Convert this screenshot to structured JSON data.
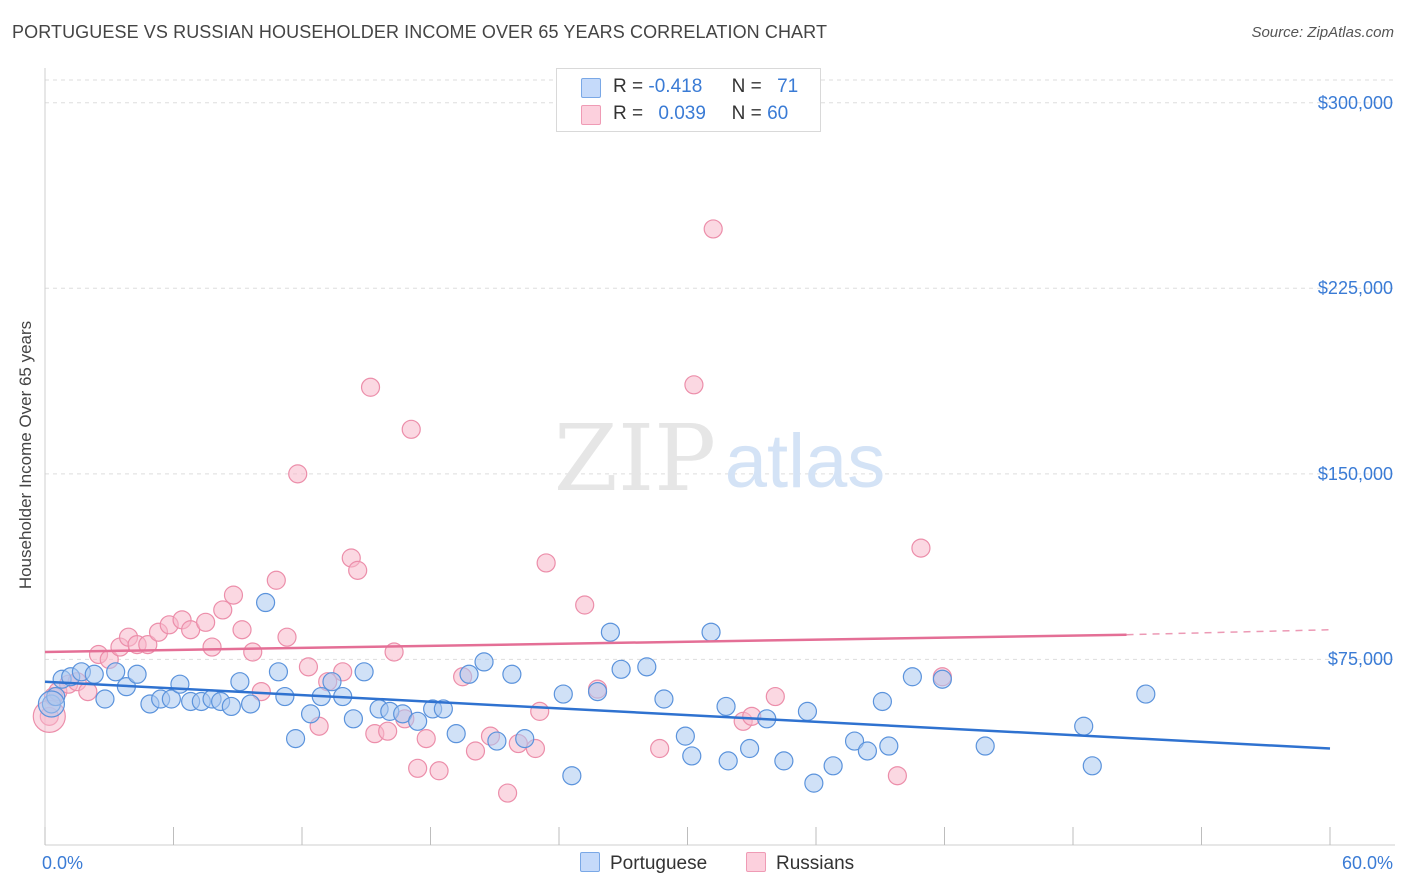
{
  "title": "PORTUGUESE VS RUSSIAN HOUSEHOLDER INCOME OVER 65 YEARS CORRELATION CHART",
  "source": "Source: ZipAtlas.com",
  "watermark": {
    "zip": "ZIP",
    "atlas": "atlas"
  },
  "legend": {
    "r_label": "R =",
    "n_label": "N =",
    "rows": [
      {
        "r": "-0.418",
        "n": "71",
        "color": "#a9c8f0"
      },
      {
        "r": "0.039",
        "n": "60",
        "color": "#f7b8cb"
      }
    ]
  },
  "bottom_legend": [
    "Portuguese",
    "Russians"
  ],
  "colors": {
    "portuguese_fill": "#a9c8f0",
    "portuguese_stroke": "#5b93dc",
    "portuguese_line": "#2f72d0",
    "russians_fill": "#f7b8cb",
    "russians_stroke": "#ec8eaa",
    "russians_line": "#e46f96",
    "tick_label": "#3a7bd5",
    "grid": "#dddddd"
  },
  "chart_data": {
    "type": "scatter",
    "title": "PORTUGUESE VS RUSSIAN HOUSEHOLDER INCOME OVER 65 YEARS CORRELATION CHART",
    "xlabel": "",
    "ylabel": "Householder Income Over 65 years",
    "xlim": [
      0,
      60
    ],
    "ylim": [
      0,
      310000
    ],
    "x_tick_labels": [
      "0.0%",
      "60.0%"
    ],
    "y_ticks": [
      75000,
      150000,
      225000,
      300000
    ],
    "y_tick_labels": [
      "$75,000",
      "$150,000",
      "$225,000",
      "$300,000"
    ],
    "grid": "horizontal dashed",
    "legend_placement": "top-center",
    "series": [
      {
        "name": "Portuguese",
        "R": -0.418,
        "N": 71,
        "trend": {
          "x": [
            0,
            60
          ],
          "y": [
            66000,
            39000
          ]
        },
        "points": [
          [
            0.3,
            57000
          ],
          [
            0.5,
            60000
          ],
          [
            0.8,
            67000
          ],
          [
            1.2,
            68000
          ],
          [
            1.7,
            70000
          ],
          [
            2.3,
            69000
          ],
          [
            2.8,
            59000
          ],
          [
            3.3,
            70000
          ],
          [
            3.8,
            64000
          ],
          [
            4.3,
            69000
          ],
          [
            4.9,
            57000
          ],
          [
            5.4,
            59000
          ],
          [
            5.9,
            59000
          ],
          [
            6.3,
            65000
          ],
          [
            6.8,
            58000
          ],
          [
            7.3,
            58000
          ],
          [
            7.8,
            59000
          ],
          [
            8.2,
            58000
          ],
          [
            8.7,
            56000
          ],
          [
            9.1,
            66000
          ],
          [
            9.6,
            57000
          ],
          [
            10.3,
            98000
          ],
          [
            10.9,
            70000
          ],
          [
            11.2,
            60000
          ],
          [
            11.7,
            43000
          ],
          [
            12.4,
            53000
          ],
          [
            12.9,
            60000
          ],
          [
            13.4,
            66000
          ],
          [
            13.9,
            60000
          ],
          [
            14.4,
            51000
          ],
          [
            14.9,
            70000
          ],
          [
            15.6,
            55000
          ],
          [
            16.1,
            54000
          ],
          [
            16.7,
            53000
          ],
          [
            17.4,
            50000
          ],
          [
            18.1,
            55000
          ],
          [
            18.6,
            55000
          ],
          [
            19.2,
            45000
          ],
          [
            19.8,
            69000
          ],
          [
            20.5,
            74000
          ],
          [
            21.1,
            42000
          ],
          [
            21.8,
            69000
          ],
          [
            22.4,
            43000
          ],
          [
            24.2,
            61000
          ],
          [
            24.6,
            28000
          ],
          [
            25.8,
            62000
          ],
          [
            26.4,
            86000
          ],
          [
            26.9,
            71000
          ],
          [
            28.1,
            72000
          ],
          [
            28.9,
            59000
          ],
          [
            29.9,
            44000
          ],
          [
            30.2,
            36000
          ],
          [
            31.1,
            86000
          ],
          [
            31.9,
            34000
          ],
          [
            31.8,
            56000
          ],
          [
            32.9,
            39000
          ],
          [
            33.7,
            51000
          ],
          [
            34.5,
            34000
          ],
          [
            35.6,
            54000
          ],
          [
            35.9,
            25000
          ],
          [
            36.8,
            32000
          ],
          [
            37.8,
            42000
          ],
          [
            38.4,
            38000
          ],
          [
            39.1,
            58000
          ],
          [
            39.4,
            40000
          ],
          [
            40.5,
            68000
          ],
          [
            41.9,
            67000
          ],
          [
            43.9,
            40000
          ],
          [
            48.5,
            48000
          ],
          [
            48.9,
            32000
          ],
          [
            51.4,
            61000
          ]
        ]
      },
      {
        "name": "Russians",
        "R": 0.039,
        "N": 60,
        "trend": {
          "x": [
            0,
            50.5
          ],
          "y": [
            78000,
            85000
          ]
        },
        "trend_extension": {
          "x": [
            50.5,
            60
          ],
          "y": [
            85000,
            87000
          ]
        },
        "points": [
          [
            0.2,
            52000
          ],
          [
            0.4,
            60000
          ],
          [
            0.6,
            62000
          ],
          [
            1.1,
            65000
          ],
          [
            1.5,
            66000
          ],
          [
            2.0,
            62000
          ],
          [
            2.5,
            77000
          ],
          [
            3.0,
            75000
          ],
          [
            3.5,
            80000
          ],
          [
            3.9,
            84000
          ],
          [
            4.3,
            81000
          ],
          [
            4.8,
            81000
          ],
          [
            5.3,
            86000
          ],
          [
            5.8,
            89000
          ],
          [
            6.4,
            91000
          ],
          [
            6.8,
            87000
          ],
          [
            7.5,
            90000
          ],
          [
            7.8,
            80000
          ],
          [
            8.3,
            95000
          ],
          [
            8.8,
            101000
          ],
          [
            9.2,
            87000
          ],
          [
            9.7,
            78000
          ],
          [
            10.1,
            62000
          ],
          [
            10.8,
            107000
          ],
          [
            11.3,
            84000
          ],
          [
            11.8,
            150000
          ],
          [
            12.3,
            72000
          ],
          [
            12.8,
            48000
          ],
          [
            13.2,
            66000
          ],
          [
            13.9,
            70000
          ],
          [
            14.3,
            116000
          ],
          [
            14.6,
            111000
          ],
          [
            15.2,
            185000
          ],
          [
            15.4,
            45000
          ],
          [
            16.0,
            46000
          ],
          [
            16.3,
            78000
          ],
          [
            16.8,
            51000
          ],
          [
            17.1,
            168000
          ],
          [
            17.4,
            31000
          ],
          [
            17.8,
            43000
          ],
          [
            18.4,
            30000
          ],
          [
            19.5,
            68000
          ],
          [
            20.1,
            38000
          ],
          [
            20.8,
            44000
          ],
          [
            21.6,
            21000
          ],
          [
            22.1,
            41000
          ],
          [
            22.9,
            39000
          ],
          [
            23.1,
            54000
          ],
          [
            23.4,
            114000
          ],
          [
            25.2,
            97000
          ],
          [
            25.8,
            63000
          ],
          [
            28.7,
            39000
          ],
          [
            30.3,
            186000
          ],
          [
            31.2,
            249000
          ],
          [
            32.6,
            50000
          ],
          [
            34.1,
            60000
          ],
          [
            39.8,
            28000
          ],
          [
            40.9,
            120000
          ],
          [
            41.9,
            68000
          ],
          [
            33.0,
            52000
          ]
        ]
      }
    ]
  }
}
